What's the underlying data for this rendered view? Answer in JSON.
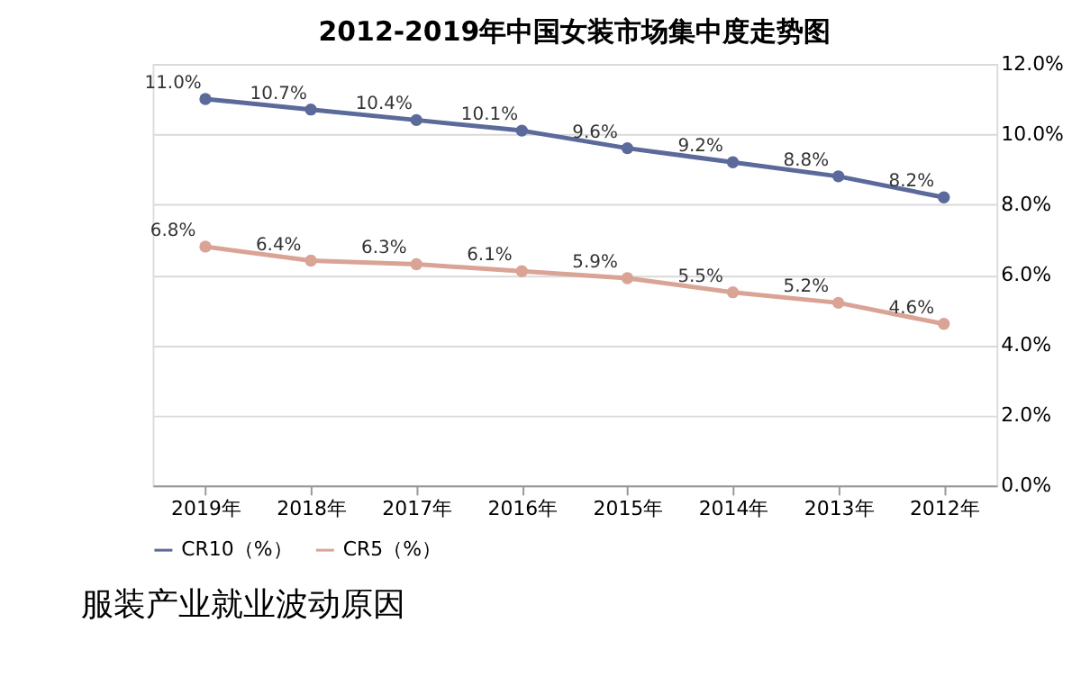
{
  "chart_data": {
    "type": "line",
    "title": "2012-2019年中国女装市场集中度走势图",
    "categories": [
      "2019年",
      "2018年",
      "2017年",
      "2016年",
      "2015年",
      "2014年",
      "2013年",
      "2012年"
    ],
    "series": [
      {
        "name": "CR10（%）",
        "color": "#5b6a9a",
        "values": [
          11.0,
          10.7,
          10.4,
          10.1,
          9.6,
          9.2,
          8.8,
          8.2
        ],
        "value_labels": [
          "11.0%",
          "10.7%",
          "10.4%",
          "10.1%",
          "9.6%",
          "9.2%",
          "8.8%",
          "8.2%"
        ]
      },
      {
        "name": "CR5（%）",
        "color": "#d9a496",
        "values": [
          6.8,
          6.4,
          6.3,
          6.1,
          5.9,
          5.5,
          5.2,
          4.6
        ],
        "value_labels": [
          "6.8%",
          "6.4%",
          "6.3%",
          "6.1%",
          "5.9%",
          "5.5%",
          "5.2%",
          "4.6%"
        ]
      }
    ],
    "ylim": [
      0,
      12
    ],
    "yticks": [
      {
        "value": 0,
        "label": "0.0%"
      },
      {
        "value": 2,
        "label": "2.0%"
      },
      {
        "value": 4,
        "label": "4.0%"
      },
      {
        "value": 6,
        "label": "6.0%"
      },
      {
        "value": 8,
        "label": "8.0%"
      },
      {
        "value": 10,
        "label": "10.0%"
      },
      {
        "value": 12,
        "label": "12.0%"
      }
    ],
    "grid": "y",
    "legend": "bottom",
    "marker": "circle",
    "line_style": "solid",
    "annotations": [
      "服装产业就业波动原因"
    ]
  }
}
